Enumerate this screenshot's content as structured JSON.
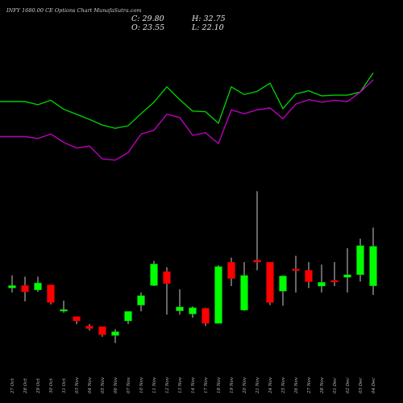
{
  "chart_data": {
    "type": "candlestick",
    "title": "INFY 1680.00  CE Options  Chart MunafaSutra.com",
    "header": {
      "close": "C: 29.80",
      "open": "O: 23.55",
      "high": "H: 32.75",
      "low": "L: 22.10"
    },
    "categories": [
      "27 Oct",
      "28 Oct",
      "29 Oct",
      "30 Oct",
      "31 Oct",
      "03 Nov",
      "04 Nov",
      "05 Nov",
      "06 Nov",
      "07 Nov",
      "10 Nov",
      "11 Nov",
      "12 Nov",
      "13 Nov",
      "14 Nov",
      "17 Nov",
      "18 Nov",
      "19 Nov",
      "20 Nov",
      "21 Nov",
      "24 Nov",
      "25 Nov",
      "26 Nov",
      "27 Nov",
      "28 Nov",
      "01 Dec",
      "02 Dec",
      "03 Dec",
      "04 Dec"
    ],
    "candles": [
      {
        "open": 23.2,
        "high": 25.2,
        "low": 22.5,
        "close": 23.6
      },
      {
        "open": 23.6,
        "high": 25.0,
        "low": 21.1,
        "close": 22.6
      },
      {
        "open": 22.9,
        "high": 25.0,
        "low": 22.6,
        "close": 24.0
      },
      {
        "open": 23.7,
        "high": 23.7,
        "low": 20.6,
        "close": 20.9
      },
      {
        "open": 19.6,
        "high": 21.2,
        "low": 19.3,
        "close": 19.8
      },
      {
        "open": 18.7,
        "high": 18.7,
        "low": 17.5,
        "close": 18.0
      },
      {
        "open": 17.2,
        "high": 17.5,
        "low": 16.5,
        "close": 16.8
      },
      {
        "open": 17.1,
        "high": 17.1,
        "low": 15.5,
        "close": 15.8
      },
      {
        "open": 15.7,
        "high": 16.7,
        "low": 14.5,
        "close": 16.3
      },
      {
        "open": 18.0,
        "high": 19.5,
        "low": 17.5,
        "close": 19.5
      },
      {
        "open": 20.5,
        "high": 22.5,
        "low": 19.5,
        "close": 22.0
      },
      {
        "open": 23.6,
        "high": 27.5,
        "low": 23.5,
        "close": 27.0
      },
      {
        "open": 25.8,
        "high": 26.5,
        "low": 19.0,
        "close": 23.9
      },
      {
        "open": 19.6,
        "high": 23.0,
        "low": 19.0,
        "close": 20.2
      },
      {
        "open": 19.1,
        "high": 20.3,
        "low": 18.5,
        "close": 20.1
      },
      {
        "open": 20.0,
        "high": 20.1,
        "low": 17.2,
        "close": 17.6
      },
      {
        "open": 17.6,
        "high": 26.8,
        "low": 17.6,
        "close": 26.6
      },
      {
        "open": 27.3,
        "high": 28.0,
        "low": 23.5,
        "close": 24.7
      },
      {
        "open": 19.7,
        "high": 27.3,
        "low": 19.6,
        "close": 25.2
      },
      {
        "open": 27.6,
        "high": 38.5,
        "low": 26.0,
        "close": 27.3
      },
      {
        "open": 27.3,
        "high": 27.3,
        "low": 20.5,
        "close": 20.9
      },
      {
        "open": 22.7,
        "high": 25.2,
        "low": 20.4,
        "close": 25.1
      },
      {
        "open": 26.2,
        "high": 28.3,
        "low": 22.5,
        "close": 26.0
      },
      {
        "open": 26.0,
        "high": 27.3,
        "low": 23.2,
        "close": 24.2
      },
      {
        "open": 23.5,
        "high": 26.9,
        "low": 22.5,
        "close": 24.1
      },
      {
        "open": 24.4,
        "high": 27.3,
        "low": 23.5,
        "close": 24.3
      },
      {
        "open": 24.9,
        "high": 29.5,
        "low": 22.5,
        "close": 25.3
      },
      {
        "open": 25.3,
        "high": 31.0,
        "low": 24.2,
        "close": 29.9
      },
      {
        "open": 23.55,
        "high": 32.75,
        "low": 22.1,
        "close": 29.8
      }
    ],
    "series": [
      {
        "color": "#00cc00",
        "values": [
          36.2,
          36.2,
          35.7,
          36.4,
          35.0,
          34.2,
          33.4,
          32.5,
          32.0,
          32.4,
          34.3,
          36.1,
          38.5,
          36.5,
          34.7,
          34.6,
          32.8,
          38.5,
          37.3,
          37.8,
          39.1,
          35.1,
          37.4,
          37.9,
          37.1,
          37.2,
          37.2,
          37.7,
          40.7
        ]
      },
      {
        "color": "#bb00bb",
        "values": [
          30.7,
          30.7,
          30.4,
          31.1,
          29.8,
          28.9,
          29.2,
          27.2,
          27.0,
          28.2,
          31.1,
          31.7,
          34.2,
          33.7,
          30.9,
          31.3,
          29.6,
          34.9,
          34.3,
          34.9,
          35.2,
          33.5,
          35.8,
          36.5,
          36.1,
          36.4,
          36.2,
          37.7,
          39.6
        ]
      }
    ],
    "colors": {
      "background": "#000000",
      "up": "#00ff00",
      "down": "#ff0000",
      "wick": "#ffffff"
    }
  }
}
